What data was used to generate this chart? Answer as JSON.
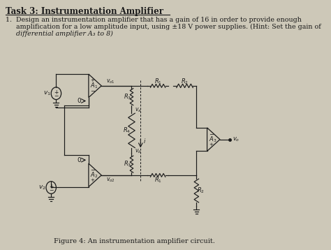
{
  "title": "Task 3: Instrumentation Amplifier",
  "line1": "1.  Design an instrumentation amplifier that has a gain of 16 in order to provide enough",
  "line2": "     amplification for a low amplitude input, using ±18 V power supplies. (Hint: Set the gain of",
  "line3": "     differential amplifier A₃ to 8)",
  "figure_caption": "Figure 4: An instrumentation amplifier circuit.",
  "bg_color": "#cdc8b8",
  "text_color": "#1a1a1a"
}
